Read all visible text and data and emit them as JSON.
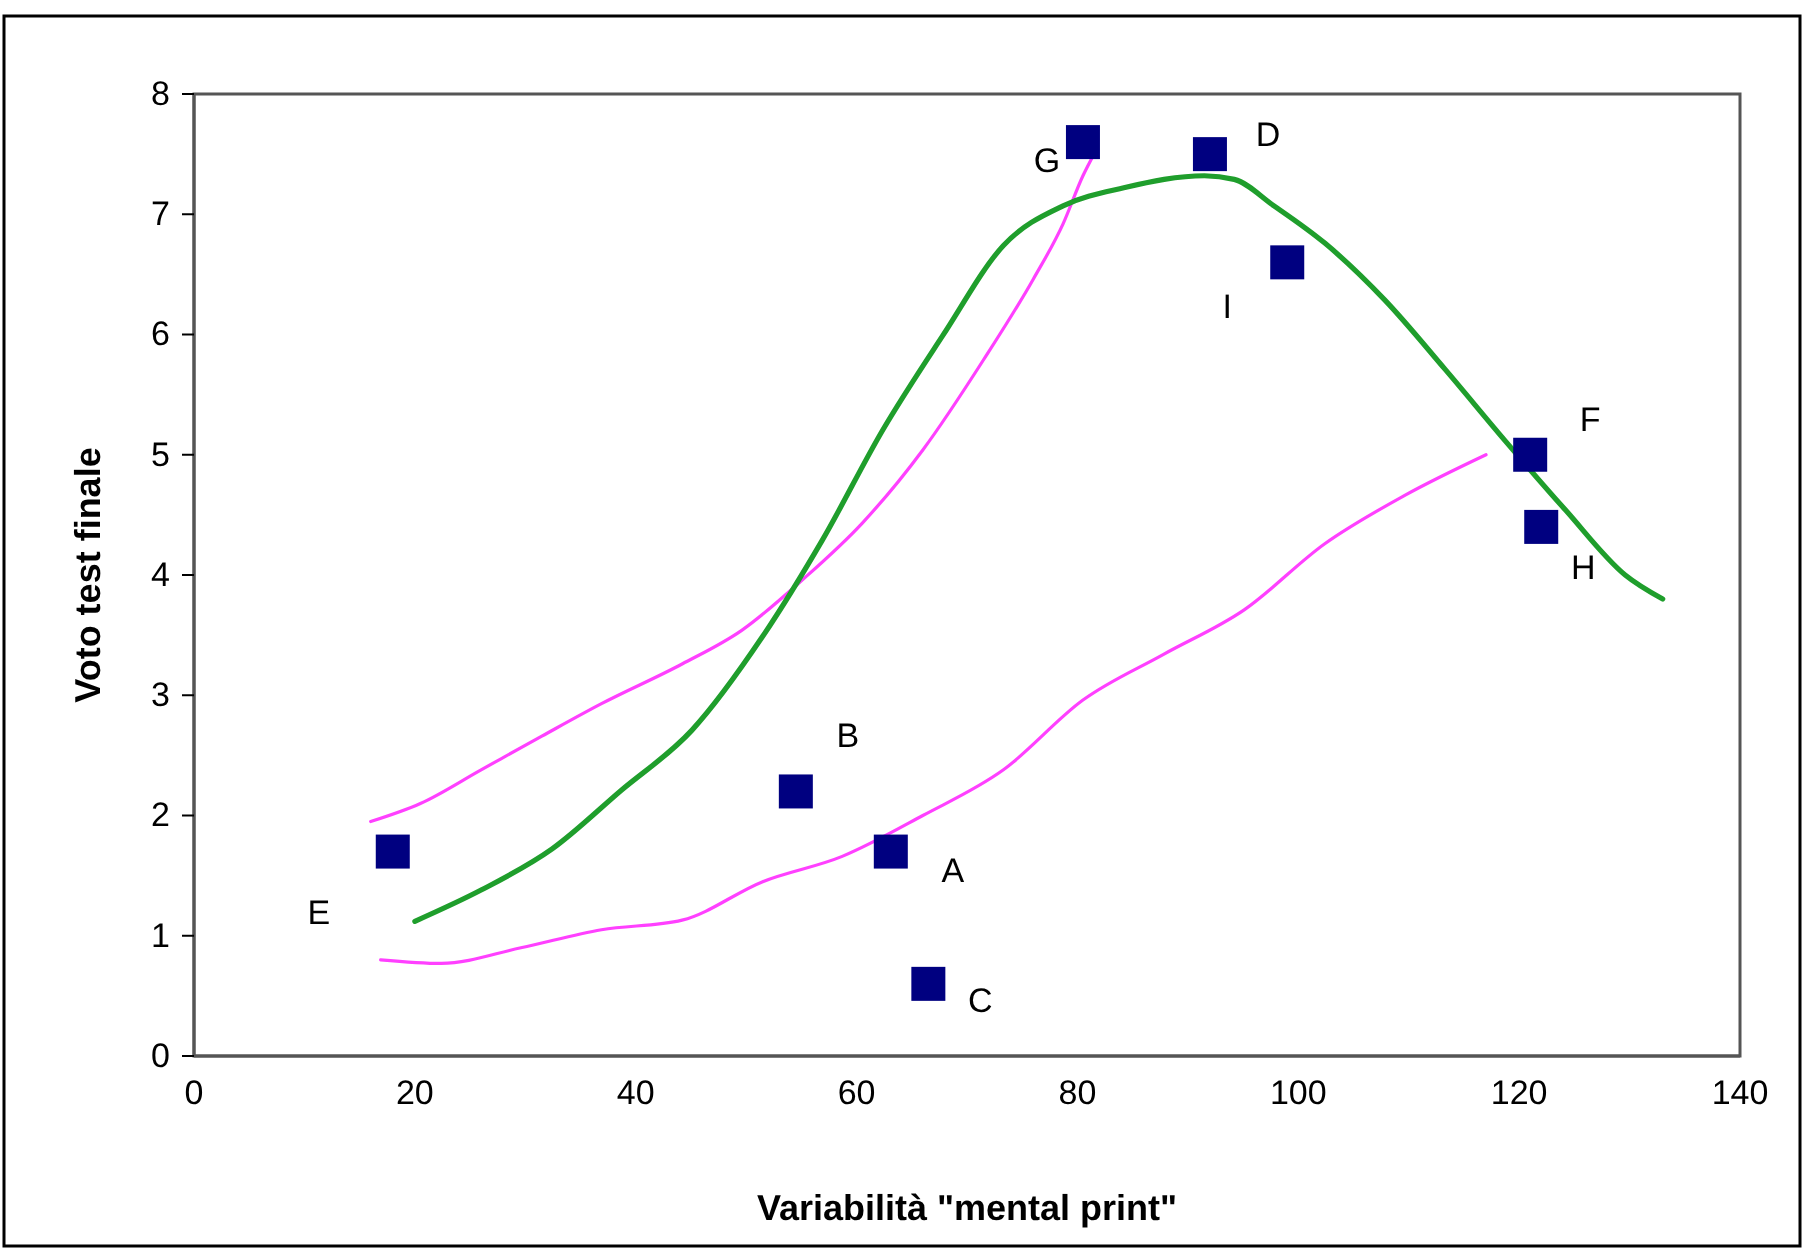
{
  "chart_data": {
    "type": "scatter",
    "xlabel": "Variabilità \"mental print\"",
    "ylabel": "Voto test finale",
    "xlim": [
      0,
      140
    ],
    "xticks": [
      0,
      20,
      40,
      60,
      80,
      100,
      120,
      140
    ],
    "ylim": [
      0,
      8
    ],
    "yticks": [
      0,
      1,
      2,
      3,
      4,
      5,
      6,
      7,
      8
    ],
    "series": [
      {
        "type": "line",
        "color": "#ff40ff",
        "x": [
          16,
          20.5,
          26,
          31.5,
          36.9,
          44.2,
          49.6,
          55.1,
          60.5,
          66,
          71.5,
          76,
          78.7,
          80.5,
          81.5
        ],
        "values": [
          1.95,
          2.1,
          2.38,
          2.66,
          2.93,
          3.26,
          3.54,
          3.96,
          4.43,
          5.04,
          5.79,
          6.46,
          6.92,
          7.32,
          7.5
        ]
      },
      {
        "type": "line",
        "color": "#ff40ff",
        "x": [
          16.9,
          22.4,
          29.6,
          36.9,
          44.2,
          51.5,
          58.7,
          66,
          73.3,
          80.5,
          87.8,
          95.1,
          102.4,
          109.6,
          117
        ],
        "values": [
          0.8,
          0.77,
          0.9,
          1.05,
          1.13,
          1.45,
          1.66,
          2.0,
          2.38,
          2.96,
          3.34,
          3.71,
          4.26,
          4.66,
          5.0
        ]
      },
      {
        "type": "line",
        "color": "#1f9e2c",
        "x": [
          20,
          26,
          32.4,
          38.7,
          45.1,
          51.5,
          56.9,
          62.4,
          67.8,
          73.3,
          78.7,
          84.2,
          91.5,
          94.2,
          97.8,
          102.4,
          107.8,
          113.3,
          118.7,
          124.2,
          129.6,
          133
        ],
        "values": [
          1.12,
          1.38,
          1.72,
          2.21,
          2.71,
          3.49,
          4.29,
          5.21,
          5.99,
          6.74,
          7.07,
          7.22,
          7.32,
          7.29,
          7.07,
          6.76,
          6.29,
          5.71,
          5.12,
          4.54,
          4.0,
          3.8
        ]
      },
      {
        "color": "#000080",
        "marker": "square",
        "x": [
          18,
          54.5,
          63.1,
          66.5,
          80.5,
          92,
          99,
          121,
          122
        ],
        "values": [
          1.7,
          2.2,
          1.7,
          0.6,
          7.6,
          7.5,
          6.6,
          5.0,
          4.4
        ]
      }
    ],
    "annotations": [
      {
        "text": "E",
        "x": 18,
        "y": 1.7
      },
      {
        "text": "B",
        "x": 54.5,
        "y": 2.2
      },
      {
        "text": "A",
        "x": 63.1,
        "y": 1.7
      },
      {
        "text": "C",
        "x": 66.5,
        "y": 0.6
      },
      {
        "text": "G",
        "x": 80.5,
        "y": 7.6
      },
      {
        "text": "D",
        "x": 92,
        "y": 7.5
      },
      {
        "text": "I",
        "x": 99,
        "y": 6.6
      },
      {
        "text": "F",
        "x": 121,
        "y": 5.0
      },
      {
        "text": "H",
        "x": 122,
        "y": 4.4
      }
    ]
  }
}
